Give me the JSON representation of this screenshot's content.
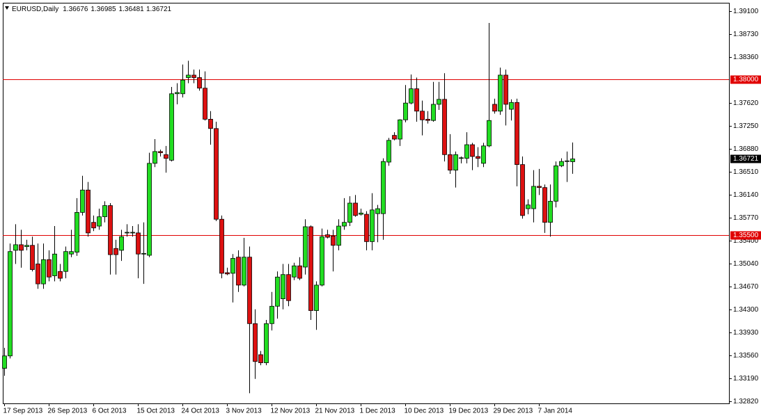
{
  "chart_data": {
    "type": "candlestick",
    "title": "EURUSD,Daily",
    "categories": [
      "17 Sep 2013",
      null,
      null,
      null,
      null,
      null,
      null,
      null,
      "26 Sep 2013",
      null,
      null,
      null,
      null,
      null,
      null,
      null,
      "6 Oct 2013",
      null,
      null,
      null,
      null,
      null,
      null,
      null,
      "15 Oct 2013",
      null,
      null,
      null,
      null,
      null,
      null,
      null,
      "24 Oct 2013",
      null,
      null,
      null,
      null,
      null,
      null,
      null,
      "3 Nov 2013",
      null,
      null,
      null,
      null,
      null,
      null,
      null,
      "12 Nov 2013",
      null,
      null,
      null,
      null,
      null,
      null,
      null,
      "21 Nov 2013",
      null,
      null,
      null,
      null,
      null,
      null,
      null,
      "1 Dec 2013",
      null,
      null,
      null,
      null,
      null,
      null,
      null,
      "10 Dec 2013",
      null,
      null,
      null,
      null,
      null,
      null,
      null,
      "19 Dec 2013",
      null,
      null,
      null,
      null,
      null,
      null,
      null,
      "29 Dec 2013",
      null,
      null,
      null,
      null,
      null,
      null,
      null,
      "7 Jan 2014",
      null,
      null,
      null,
      null,
      null,
      null
    ],
    "open": [
      1.3335,
      1.3355,
      1.3525,
      1.3534,
      1.3531,
      1.3533,
      1.3503,
      1.3471,
      1.351,
      1.3484,
      1.3491,
      1.3491,
      1.3519,
      1.3522,
      1.3586,
      1.3622,
      1.357,
      1.3564,
      1.3579,
      1.3597,
      1.3528,
      1.3525,
      1.3553,
      1.3553,
      1.3553,
      1.3519,
      1.3517,
      1.3665,
      1.3684,
      1.3679,
      1.367,
      1.3777,
      1.3777,
      1.3803,
      1.3807,
      1.3803,
      1.3786,
      1.3736,
      1.3721,
      1.3575,
      1.3489,
      1.3488,
      1.3514,
      1.3469,
      1.3514,
      1.3407,
      1.3357,
      1.3344,
      1.3407,
      1.3435,
      1.3447,
      1.3486,
      1.3482,
      1.35,
      1.3498,
      1.3563,
      1.3428,
      1.3469,
      1.355,
      1.3548,
      1.3533,
      1.3564,
      1.357,
      1.3601,
      1.3583,
      1.3583,
      1.3539,
      1.3584,
      1.3584,
      1.3667,
      1.371,
      1.3704,
      1.3735,
      1.3762,
      1.3785,
      1.3749,
      1.3736,
      1.3734,
      1.376,
      1.3768,
      1.3679,
      1.3654,
      1.3673,
      1.3673,
      1.3695,
      1.3676,
      1.3665,
      1.3693,
      1.376,
      1.3749,
      1.3807,
      1.3752,
      1.3763,
      1.3663,
      1.3592,
      1.3592,
      1.3628,
      1.3626,
      1.357,
      1.3604,
      1.3661,
      1.3668,
      1.36676
    ],
    "high": [
      1.3368,
      1.3536,
      1.3567,
      1.3558,
      1.3542,
      1.3547,
      1.3536,
      1.3536,
      1.3525,
      1.3564,
      1.3503,
      1.3531,
      1.3558,
      1.3609,
      1.3645,
      1.3635,
      1.3581,
      1.3592,
      1.3604,
      1.3601,
      1.3542,
      1.3558,
      1.3567,
      1.3564,
      1.3567,
      1.357,
      1.3682,
      1.3704,
      1.3687,
      1.3693,
      1.3788,
      1.3794,
      1.3824,
      1.383,
      1.3816,
      1.3816,
      1.3813,
      1.3749,
      1.3732,
      1.3581,
      1.3497,
      1.3519,
      1.3525,
      1.3545,
      1.3531,
      1.343,
      1.3363,
      1.3413,
      1.3458,
      1.3491,
      1.3503,
      1.3503,
      1.3505,
      1.3514,
      1.3575,
      1.3565,
      1.3475,
      1.356,
      1.3558,
      1.3558,
      1.3575,
      1.3609,
      1.3612,
      1.3614,
      1.3592,
      1.3588,
      1.3617,
      1.3598,
      1.3673,
      1.3706,
      1.3715,
      1.3736,
      1.3791,
      1.3808,
      1.3803,
      1.3766,
      1.3749,
      1.3796,
      1.3796,
      1.381,
      1.3712,
      1.3684,
      1.3676,
      1.3715,
      1.3698,
      1.3691,
      1.3698,
      1.3891,
      1.3769,
      1.3819,
      1.3816,
      1.3768,
      1.3769,
      1.3676,
      1.3607,
      1.3654,
      1.3656,
      1.3631,
      1.3631,
      1.3668,
      1.3673,
      1.3684,
      1.36985
    ],
    "low": [
      1.3323,
      1.3351,
      1.3503,
      1.3497,
      1.3525,
      1.3491,
      1.3463,
      1.3463,
      1.3475,
      1.3475,
      1.3475,
      1.348,
      1.3514,
      1.3516,
      1.3581,
      1.3547,
      1.3556,
      1.3558,
      1.357,
      1.3486,
      1.3486,
      1.3508,
      1.3547,
      1.3547,
      1.348,
      1.3471,
      1.3514,
      1.3659,
      1.3676,
      1.365,
      1.3668,
      1.376,
      1.3771,
      1.3794,
      1.3794,
      1.3782,
      1.3734,
      1.3695,
      1.3572,
      1.348,
      1.3485,
      1.3441,
      1.3458,
      1.3467,
      1.3295,
      1.3318,
      1.334,
      1.334,
      1.3396,
      1.3415,
      1.343,
      1.3435,
      1.3477,
      1.3477,
      1.3486,
      1.3413,
      1.3397,
      1.3467,
      1.3544,
      1.3491,
      1.3525,
      1.3558,
      1.3564,
      1.3579,
      1.3581,
      1.3525,
      1.3525,
      1.3538,
      1.3542,
      1.3661,
      1.3702,
      1.3693,
      1.3731,
      1.376,
      1.3732,
      1.371,
      1.3729,
      1.3732,
      1.3751,
      1.3668,
      1.3648,
      1.3626,
      1.3665,
      1.3665,
      1.3654,
      1.3659,
      1.3659,
      1.3691,
      1.3745,
      1.3743,
      1.3726,
      1.3734,
      1.3628,
      1.3576,
      1.3583,
      1.357,
      1.3614,
      1.3553,
      1.3547,
      1.3594,
      1.3659,
      1.3635,
      1.36481
    ],
    "close": [
      1.3355,
      1.3523,
      1.3534,
      1.3525,
      1.3533,
      1.3494,
      1.3471,
      1.351,
      1.3482,
      1.3519,
      1.348,
      1.3523,
      1.3523,
      1.3586,
      1.3622,
      1.3553,
      1.3561,
      1.3579,
      1.3597,
      1.3518,
      1.3518,
      1.3547,
      1.3554,
      1.3554,
      1.3519,
      1.352,
      1.3665,
      1.3684,
      1.3682,
      1.3673,
      1.3777,
      1.3779,
      1.3799,
      1.3807,
      1.3803,
      1.3786,
      1.3736,
      1.3721,
      1.3575,
      1.3488,
      1.3487,
      1.3512,
      1.3469,
      1.3514,
      1.3407,
      1.3346,
      1.3344,
      1.3407,
      1.3435,
      1.3482,
      1.3486,
      1.3444,
      1.35,
      1.348,
      1.3563,
      1.3428,
      1.3469,
      1.3547,
      1.3546,
      1.3533,
      1.3564,
      1.357,
      1.3601,
      1.3581,
      1.3585,
      1.3539,
      1.359,
      1.3592,
      1.3668,
      1.3702,
      1.3704,
      1.3735,
      1.3762,
      1.3785,
      1.3749,
      1.3735,
      1.3734,
      1.376,
      1.3768,
      1.3679,
      1.3654,
      1.3679,
      1.3674,
      1.3695,
      1.3676,
      1.3673,
      1.3693,
      1.3734,
      1.3749,
      1.3807,
      1.376,
      1.3763,
      1.3663,
      1.3581,
      1.3598,
      1.3628,
      1.3626,
      1.357,
      1.3604,
      1.3661,
      1.3668,
      1.3669,
      1.36721
    ],
    "up_color": "#22dd22",
    "down_color": "#dd1111",
    "ylim": [
      1.32786,
      1.39234
    ],
    "yticks": [
      {
        "value": 1.391,
        "label": "1.39100"
      },
      {
        "value": 1.3873,
        "label": "1.38730"
      },
      {
        "value": 1.3836,
        "label": "1.38360"
      },
      {
        "value": 1.3762,
        "label": "1.37620"
      },
      {
        "value": 1.3725,
        "label": "1.37250"
      },
      {
        "value": 1.3688,
        "label": "1.36880"
      },
      {
        "value": 1.3651,
        "label": "1.36510"
      },
      {
        "value": 1.3614,
        "label": "1.36140"
      },
      {
        "value": 1.3577,
        "label": "1.35770"
      },
      {
        "value": 1.354,
        "label": "1.35400"
      },
      {
        "value": 1.3504,
        "label": "1.35040"
      },
      {
        "value": 1.3467,
        "label": "1.34670"
      },
      {
        "value": 1.343,
        "label": "1.34300"
      },
      {
        "value": 1.3393,
        "label": "1.33930"
      },
      {
        "value": 1.3356,
        "label": "1.33560"
      },
      {
        "value": 1.3319,
        "label": "1.33190"
      },
      {
        "value": 1.3282,
        "label": "1.32820"
      }
    ],
    "levels": [
      {
        "value": 1.38,
        "label": "1.38000"
      },
      {
        "value": 1.355,
        "label": "1.35500"
      }
    ],
    "level_color": "#e00000"
  }
}
